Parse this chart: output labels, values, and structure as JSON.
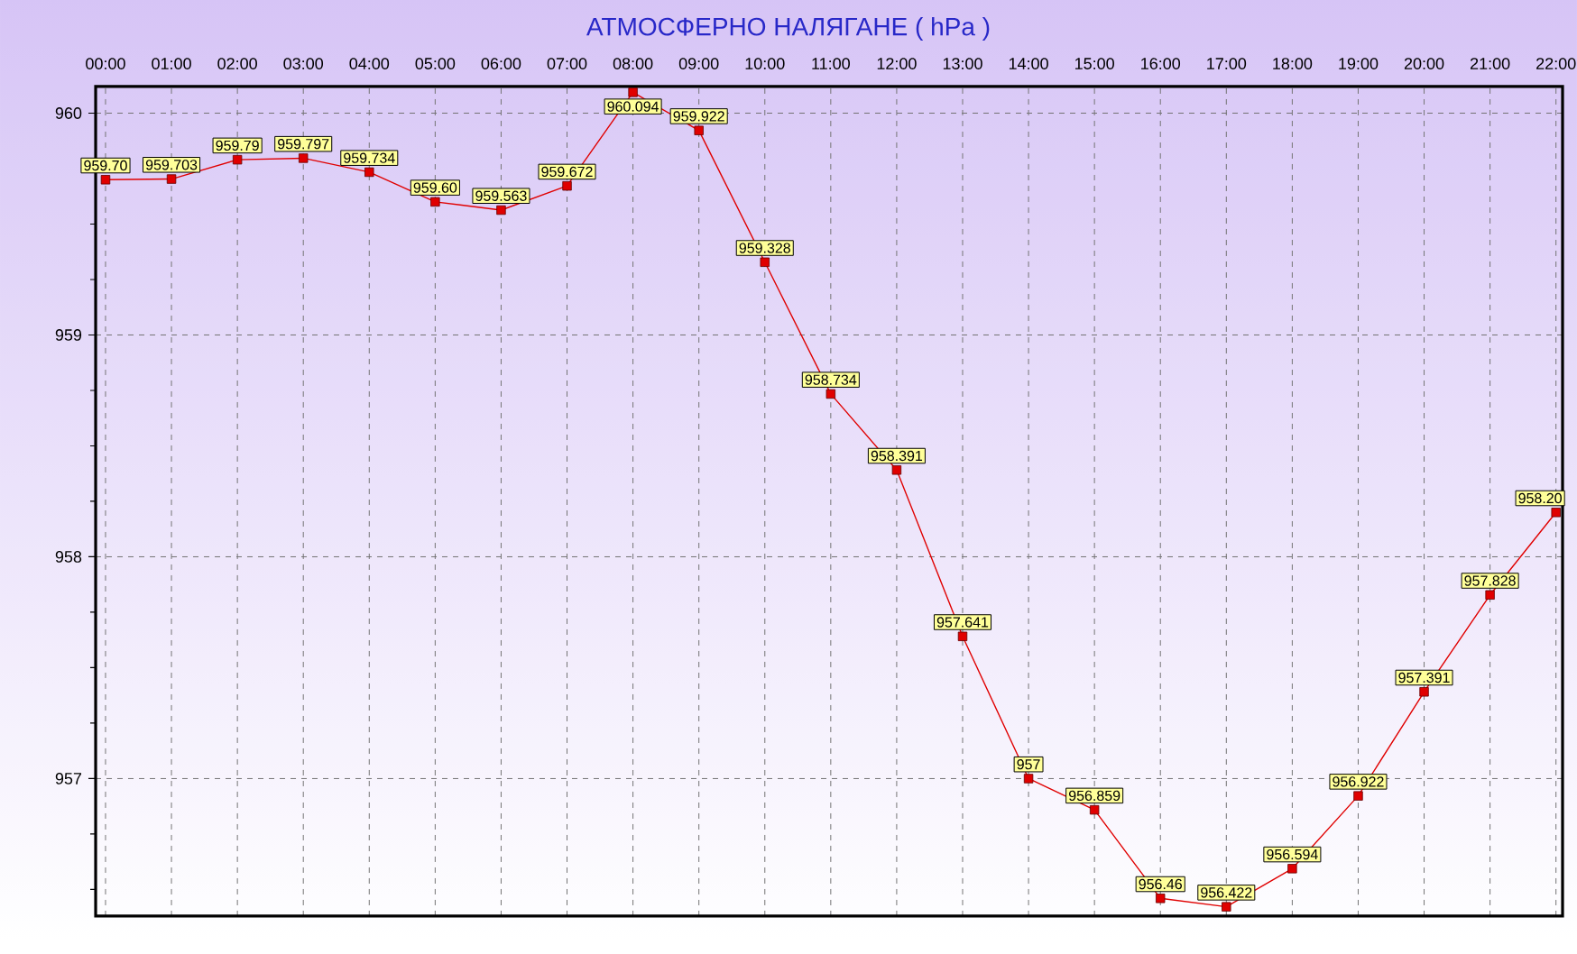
{
  "chart_data": {
    "type": "line",
    "title": "АТМОСФЕРНО НАЛЯГАНЕ ( hPa )",
    "categories": [
      "00:00",
      "01:00",
      "02:00",
      "03:00",
      "04:00",
      "05:00",
      "06:00",
      "07:00",
      "08:00",
      "09:00",
      "10:00",
      "11:00",
      "12:00",
      "13:00",
      "14:00",
      "15:00",
      "16:00",
      "17:00",
      "18:00",
      "19:00",
      "20:00",
      "21:00",
      "22:00"
    ],
    "values": [
      959.7,
      959.703,
      959.79,
      959.797,
      959.734,
      959.6,
      959.563,
      959.672,
      960.094,
      959.922,
      959.328,
      958.734,
      958.391,
      957.641,
      957,
      956.859,
      956.46,
      956.422,
      956.594,
      956.922,
      957.391,
      957.828,
      958.2
    ],
    "value_labels": [
      "959.70",
      "959.703",
      "959.79",
      "959.797",
      "959.734",
      "959.60",
      "959.563",
      "959.672",
      "960.094",
      "959.922",
      "959.328",
      "958.734",
      "958.391",
      "957.641",
      "957",
      "956.859",
      "956.46",
      "956.422",
      "956.594",
      "956.922",
      "957.391",
      "957.828",
      "958.20"
    ],
    "color": "#e00000",
    "ylim": [
      956.38,
      960.12
    ],
    "yticks": [
      {
        "value": 956.5,
        "label": null
      },
      {
        "value": 956.75,
        "label": null
      },
      957,
      {
        "value": 957.25,
        "label": null
      },
      {
        "value": 957.5,
        "label": null
      },
      {
        "value": 957.75,
        "label": null
      },
      958,
      {
        "value": 958.25,
        "label": null
      },
      {
        "value": 958.5,
        "label": null
      },
      {
        "value": 958.75,
        "label": null
      },
      959,
      {
        "value": 959.25,
        "label": null
      },
      {
        "value": 959.5,
        "label": null
      },
      {
        "value": 959.75,
        "label": null
      },
      960
    ],
    "grid": true,
    "marker": "square",
    "line_style": "solid"
  }
}
